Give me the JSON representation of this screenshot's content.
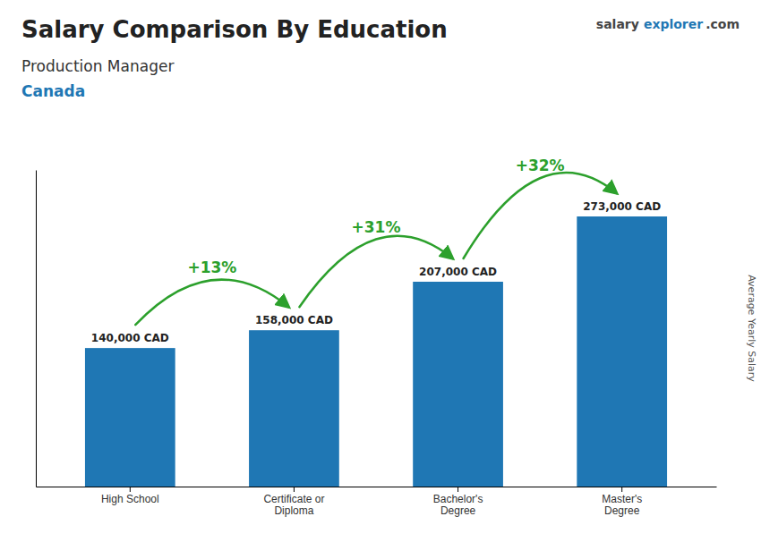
{
  "chart_data": {
    "type": "bar",
    "title": "Salary Comparison By Education",
    "subtitle": "Production Manager",
    "annotations": [
      "Canada",
      "salary",
      "explorer",
      ".com"
    ],
    "ylabel": "Average Yearly Salary",
    "categories": [
      "High School",
      "Certificate or\nDiploma",
      "Bachelor's\nDegree",
      "Master's\nDegree"
    ],
    "values": [
      140000,
      158000,
      207000,
      273000
    ],
    "value_labels": [
      "140,000 CAD",
      "158,000 CAD",
      "207,000 CAD",
      "273,000 CAD"
    ],
    "data_labels": true,
    "arrow_labels": [
      "+13%",
      "+31%",
      "+32%"
    ],
    "ylim": [
      0,
      320000
    ],
    "tick_labels": "x"
  }
}
